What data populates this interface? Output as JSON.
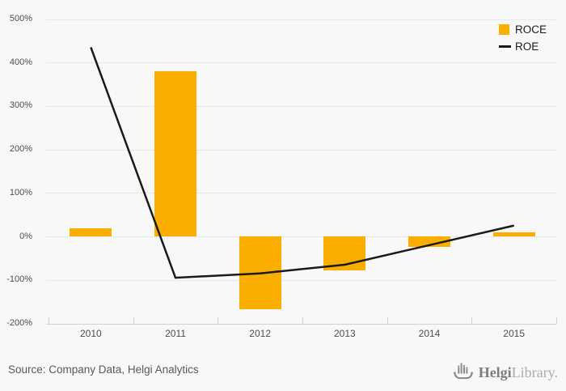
{
  "chart_data": {
    "type": "bar+line",
    "title": "",
    "xlabel": "",
    "ylabel": "",
    "categories": [
      "2010",
      "2011",
      "2012",
      "2013",
      "2014",
      "2015"
    ],
    "series": [
      {
        "name": "ROCE",
        "type": "bar",
        "color": "#f9ae00",
        "values": [
          18,
          380,
          -168,
          -78,
          -25,
          10
        ]
      },
      {
        "name": "ROE",
        "type": "line",
        "color": "#1a1a1a",
        "values": [
          435,
          -95,
          -85,
          -65,
          -20,
          25
        ]
      }
    ],
    "ylim": [
      -200,
      500
    ],
    "ytick_step": 100,
    "ytick_labels": [
      "500%",
      "400%",
      "300%",
      "200%",
      "100%",
      "0%",
      "-100%",
      "-200%"
    ],
    "grid": "horizontal",
    "legend_position": "top-right"
  },
  "colors": {
    "background": "#f8f8f8",
    "gridline": "#e8e8e8",
    "axis": "#c9d2e2",
    "tick_label": "#4d4d4d",
    "bar": "#f9ae00",
    "line": "#1a1a1a"
  },
  "footer": {
    "source_text": "Source: Company Data, Helgi Analytics",
    "logo": {
      "icon": "longship-barchart-icon",
      "brand_bold": "Helgi",
      "brand_light": "Library."
    }
  }
}
